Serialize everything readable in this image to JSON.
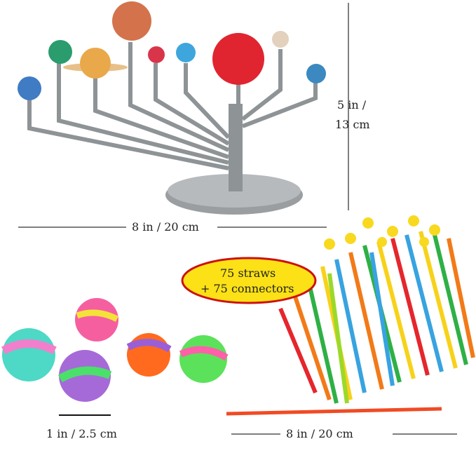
{
  "labels": {
    "model_height": "5 in /",
    "model_height_cm": "13 cm",
    "model_width": "8 in / 20 cm",
    "ball_size": "1 in / 2.5 cm",
    "straw_length": "8 in / 20 cm",
    "callout_line1": "75 straws",
    "callout_line2": "+ 75 connectors"
  },
  "colors": {
    "callout_fill": "#fbe116",
    "callout_border": "#cc1111",
    "model_gray": "#8e9396",
    "sun_red": "#e02530"
  }
}
